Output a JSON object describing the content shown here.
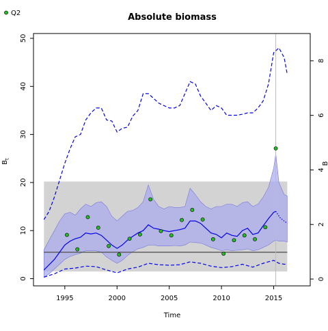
{
  "chart_data": {
    "type": "line",
    "title": "Absolute biomass",
    "xlabel": "Time",
    "ylabel": "B",
    "ylabel_subscript": "t",
    "right_ylabel": "B",
    "xlim": [
      1992,
      2018.5
    ],
    "ylim": [
      -1.5,
      51
    ],
    "right_ylim": [
      -0.25,
      9.0
    ],
    "x_ticks": [
      1995,
      2000,
      2005,
      2010,
      2015
    ],
    "y_ticks": [
      0,
      10,
      20,
      30,
      40,
      50
    ],
    "right_ticks": [
      0,
      2,
      4,
      6,
      8
    ],
    "grid": false,
    "legend": {
      "position": "top-left",
      "entries": [
        "Q2"
      ]
    },
    "colors": {
      "estimate": "#0000ee",
      "band_fill": "#aaaaee",
      "reference_band": "#d3d3d3",
      "reference_line": "#555555",
      "points": "#22bb22",
      "vline": "#bbbbcc"
    },
    "reference_band": {
      "x": [
        1993,
        2016.3
      ],
      "y": [
        1.5,
        20.2
      ]
    },
    "reference_line": {
      "x": [
        1993,
        2016.3
      ],
      "y": 5.5
    },
    "vertical_line_x": 2015.2,
    "series": [
      {
        "role": "estimate",
        "style": "solid",
        "x": [
          1993,
          1994,
          1995,
          1995.5,
          1996,
          1996.5,
          1997,
          1997.5,
          1998,
          1998.5,
          1999,
          1999.5,
          2000,
          2000.5,
          2001,
          2001.5,
          2002,
          2002.5,
          2003,
          2003.5,
          2004,
          2004.5,
          2005,
          2005.5,
          2006,
          2006.5,
          2007,
          2007.5,
          2008,
          2008.5,
          2009,
          2009.5,
          2010,
          2010.5,
          2011,
          2011.5,
          2012,
          2012.5,
          2013,
          2013.5,
          2014,
          2014.5,
          2015,
          2015.2
        ],
        "y": [
          1.8,
          4.0,
          7.0,
          7.8,
          8.3,
          8.6,
          9.5,
          9.3,
          9.5,
          9.0,
          8.0,
          7.0,
          6.3,
          7.0,
          8.0,
          8.8,
          9.5,
          10.0,
          11.2,
          10.5,
          10.3,
          10.0,
          9.8,
          10.0,
          10.2,
          10.5,
          12.0,
          12.0,
          11.5,
          10.5,
          9.5,
          9.2,
          8.5,
          9.5,
          9.0,
          8.8,
          10.0,
          10.5,
          9.2,
          9.5,
          11.0,
          12.5,
          13.8,
          14.0
        ]
      },
      {
        "role": "estimate",
        "style": "dotted",
        "x": [
          2015.2,
          2015.6,
          2016,
          2016.3
        ],
        "y": [
          14.0,
          12.7,
          12.0,
          11.5
        ]
      },
      {
        "role": "upper_ci",
        "style": "dashed",
        "x": [
          1993,
          1993.5,
          1994,
          1994.5,
          1995,
          1995.5,
          1996,
          1996.5,
          1997,
          1997.5,
          1998,
          1998.5,
          1999,
          1999.5,
          2000,
          2000.5,
          2001,
          2001.5,
          2002,
          2002.5,
          2003,
          2003.5,
          2004,
          2004.5,
          2005,
          2005.5,
          2006,
          2006.5,
          2007,
          2007.5,
          2008,
          2008.5,
          2009,
          2009.5,
          2010,
          2010.5,
          2011,
          2011.5,
          2012,
          2012.5,
          2013,
          2013.5,
          2014,
          2014.5,
          2015,
          2015.5,
          2016,
          2016.3
        ],
        "y": [
          12.3,
          14,
          17,
          20.5,
          24,
          27,
          29.5,
          30,
          33,
          34.5,
          35.5,
          35.5,
          33,
          32.8,
          30.5,
          31.3,
          31.5,
          33.8,
          35,
          38.5,
          38.5,
          37.5,
          36.5,
          36,
          35.5,
          35.5,
          36,
          38.5,
          41,
          40.5,
          38,
          36.5,
          35,
          36,
          35.5,
          34,
          34,
          34,
          34.2,
          34.5,
          34.5,
          35.5,
          37,
          40.5,
          47,
          48,
          46,
          42.5
        ]
      },
      {
        "role": "lower_ci",
        "style": "dashed",
        "x": [
          1993,
          1994,
          1995,
          1996,
          1997,
          1998,
          1999,
          2000,
          2001,
          2002,
          2003,
          2004,
          2005,
          2006,
          2007,
          2008,
          2009,
          2010,
          2011,
          2012,
          2013,
          2014,
          2015,
          2015.5,
          2016,
          2016.3
        ],
        "y": [
          0.3,
          1.0,
          2.0,
          2.2,
          2.6,
          2.5,
          1.8,
          1.2,
          2.0,
          2.4,
          3.2,
          2.9,
          2.8,
          2.9,
          3.5,
          3.2,
          2.6,
          2.3,
          2.5,
          3.0,
          2.4,
          3.2,
          3.8,
          3.2,
          3.0,
          3.0
        ]
      }
    ],
    "band": {
      "role": "confidence_band",
      "x": [
        1993,
        1993.5,
        1994,
        1994.5,
        1995,
        1995.5,
        1996,
        1996.5,
        1997,
        1997.5,
        1998,
        1998.5,
        1999,
        1999.5,
        2000,
        2000.5,
        2001,
        2001.5,
        2002,
        2002.5,
        2003,
        2003.5,
        2004,
        2004.5,
        2005,
        2005.5,
        2006,
        2006.5,
        2007,
        2007.5,
        2008,
        2008.5,
        2009,
        2009.5,
        2010,
        2010.5,
        2011,
        2011.5,
        2012,
        2012.5,
        2013,
        2013.5,
        2014,
        2014.5,
        2015,
        2015.2,
        2015.5,
        2016,
        2016.3
      ],
      "upper": [
        6.0,
        8.0,
        10.0,
        12.0,
        13.5,
        13.8,
        13.2,
        14.5,
        15.5,
        15.0,
        15.8,
        16.0,
        15.0,
        13.0,
        12.0,
        13.0,
        14.0,
        14.2,
        14.8,
        16.0,
        19.5,
        16.5,
        15.0,
        14.5,
        15.0,
        14.8,
        14.8,
        15.0,
        18.8,
        17.5,
        16.0,
        15.0,
        14.5,
        15.0,
        15.0,
        15.5,
        15.5,
        15.0,
        15.8,
        16.0,
        15.0,
        15.5,
        17.0,
        19.0,
        23.0,
        26.0,
        20.0,
        17.5,
        17.2
      ],
      "lower": [
        0.3,
        1.0,
        2.0,
        3.0,
        4.0,
        4.6,
        5.0,
        5.3,
        5.8,
        5.8,
        5.8,
        5.5,
        4.5,
        3.8,
        3.2,
        3.8,
        4.8,
        5.6,
        6.2,
        6.5,
        7.0,
        7.0,
        6.8,
        6.8,
        6.8,
        6.9,
        6.8,
        7.0,
        7.6,
        7.5,
        7.4,
        7.0,
        6.5,
        6.2,
        5.8,
        6.0,
        5.8,
        5.9,
        6.0,
        6.2,
        5.8,
        6.0,
        6.5,
        7.0,
        7.8,
        8.0,
        7.8,
        7.8,
        7.6
      ]
    },
    "points": {
      "name": "Q2",
      "x": [
        1995.2,
        1996.2,
        1997.2,
        1998.2,
        1999.2,
        2000.2,
        2001.2,
        2002.2,
        2003.2,
        2004.2,
        2005.2,
        2006.2,
        2007.2,
        2008.2,
        2009.2,
        2010.2,
        2011.2,
        2012.2,
        2013.2,
        2014.2,
        2015.2
      ],
      "y": [
        9.1,
        6.1,
        12.8,
        10.6,
        6.8,
        5.0,
        8.3,
        9.2,
        16.5,
        9.9,
        9.0,
        12.2,
        14.3,
        12.3,
        8.2,
        5.2,
        8.0,
        9.0,
        8.2,
        10.7,
        27.1
      ]
    }
  }
}
